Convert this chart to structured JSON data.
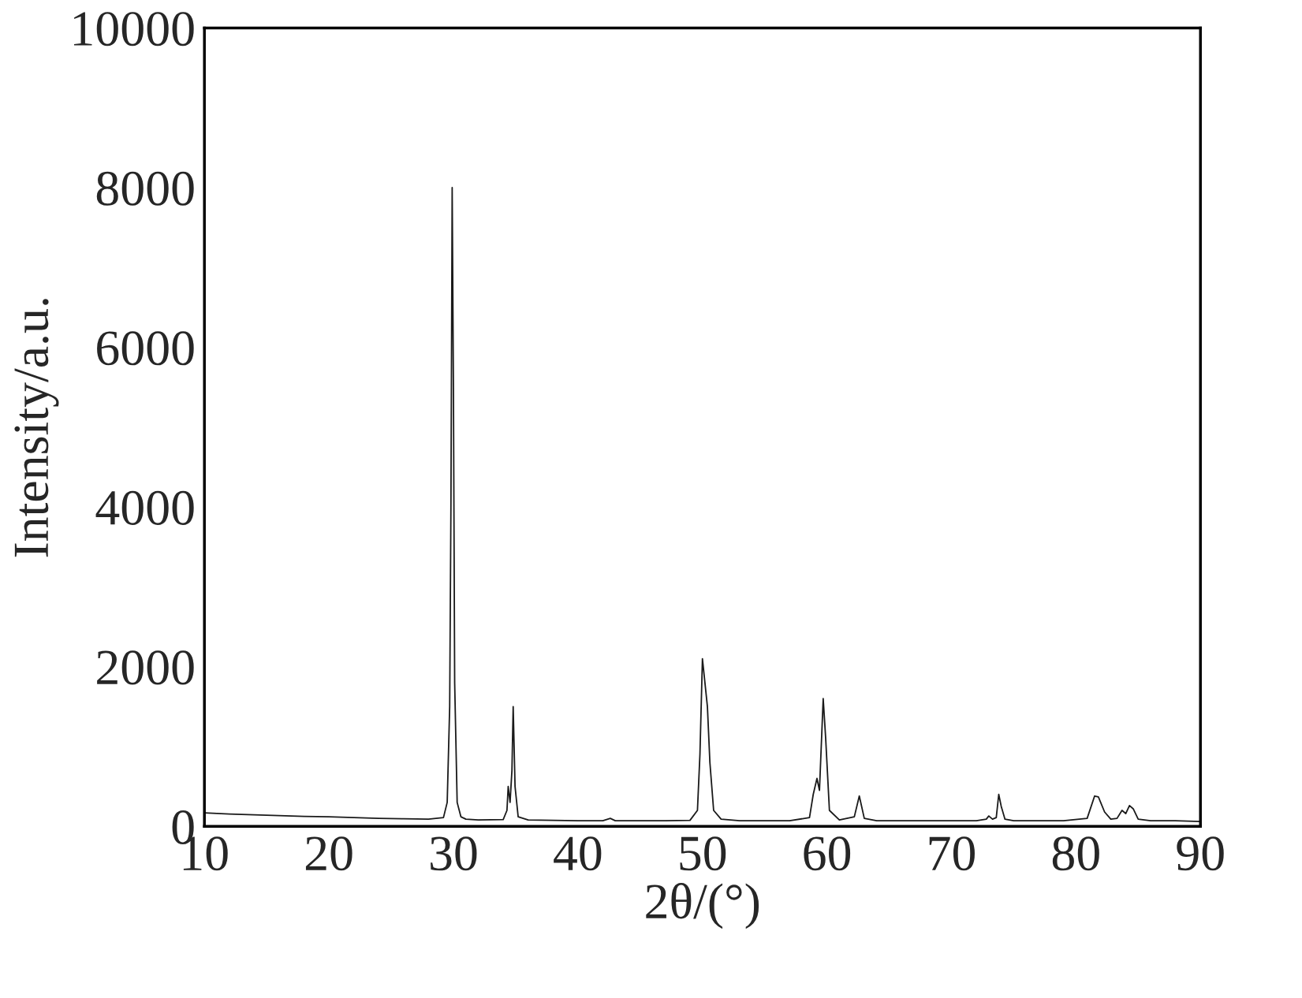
{
  "chart_data": {
    "type": "line",
    "xlabel": "2θ/(°)",
    "ylabel": "Intensity/a.u.",
    "xlim": [
      10,
      90
    ],
    "ylim": [
      0,
      10000
    ],
    "xticks": [
      10,
      20,
      30,
      40,
      50,
      60,
      70,
      80,
      90
    ],
    "yticks": [
      0,
      2000,
      4000,
      6000,
      8000,
      10000
    ],
    "grid": false,
    "legend": false,
    "marker": "none",
    "line_style": "solid",
    "series": [
      {
        "color": "#1a1a1a",
        "x": [
          10,
          12,
          14,
          16,
          18,
          20,
          22,
          24,
          26,
          28,
          29.2,
          29.5,
          29.7,
          29.8,
          29.9,
          30.0,
          30.1,
          30.3,
          30.6,
          31,
          32,
          34,
          34.3,
          34.4,
          34.55,
          34.7,
          34.8,
          34.95,
          35.2,
          36,
          38,
          40,
          42,
          42.6,
          43,
          45,
          47,
          49,
          49.6,
          49.8,
          50.0,
          50.2,
          50.4,
          50.6,
          50.9,
          51.5,
          53,
          55,
          57,
          58.6,
          58.9,
          59.2,
          59.4,
          59.7,
          59.9,
          60.2,
          61,
          62.2,
          62.6,
          63.0,
          64,
          66,
          68,
          70,
          72,
          72.8,
          73.0,
          73.3,
          73.6,
          73.8,
          74.0,
          74.3,
          75,
          77,
          79,
          80.9,
          81.5,
          81.8,
          82.3,
          82.8,
          83.3,
          83.7,
          84.0,
          84.3,
          84.6,
          85.0,
          86,
          88,
          90
        ],
        "values": [
          170,
          155,
          145,
          135,
          125,
          120,
          110,
          100,
          95,
          90,
          110,
          300,
          1500,
          4000,
          8000,
          5500,
          1800,
          300,
          120,
          90,
          80,
          85,
          200,
          500,
          300,
          700,
          1500,
          500,
          120,
          80,
          75,
          70,
          70,
          100,
          70,
          70,
          70,
          75,
          200,
          900,
          2100,
          1800,
          1500,
          800,
          200,
          90,
          70,
          70,
          70,
          110,
          400,
          600,
          450,
          1600,
          1100,
          200,
          80,
          120,
          380,
          100,
          70,
          70,
          70,
          70,
          70,
          90,
          130,
          90,
          110,
          400,
          250,
          90,
          70,
          70,
          70,
          100,
          380,
          370,
          180,
          90,
          100,
          200,
          160,
          260,
          220,
          90,
          70,
          70,
          60
        ]
      }
    ]
  }
}
